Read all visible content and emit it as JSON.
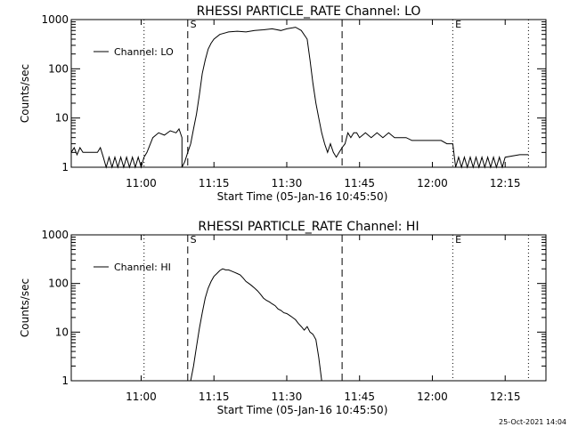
{
  "footer": {
    "timestamp": "25-Oct-2021 14:04"
  },
  "chart_data": [
    {
      "type": "line",
      "title": "RHESSI PARTICLE_RATE Channel: LO",
      "xlabel": "Start Time (05-Jan-16 10:45:50)",
      "ylabel": "Counts/sec",
      "y_scale": "log",
      "ylim": [
        1,
        1000
      ],
      "xlim": [
        10.76,
        12.39
      ],
      "x_ticks": [
        11.0,
        11.25,
        11.5,
        11.75,
        12.0,
        12.25
      ],
      "x_tick_labels": [
        "11:00",
        "11:15",
        "11:30",
        "11:45",
        "12:00",
        "12:15"
      ],
      "y_ticks": [
        1,
        10,
        100,
        1000
      ],
      "y_tick_labels": [
        "1",
        "10",
        "100",
        "1000"
      ],
      "grid": false,
      "legend_position": "top-left",
      "vlines_dotted": [
        11.01,
        12.07,
        12.33
      ],
      "vlines_dashed": [
        11.16,
        11.69
      ],
      "markers": [
        {
          "label": "S",
          "x": 11.17
        },
        {
          "label": "E",
          "x": 12.08
        }
      ],
      "series": [
        {
          "name": "Channel: LO",
          "x": [
            10.76,
            10.77,
            10.78,
            10.79,
            10.8,
            10.81,
            10.82,
            10.83,
            10.84,
            10.85,
            10.86,
            10.87,
            10.88,
            10.89,
            10.9,
            10.91,
            10.92,
            10.93,
            10.94,
            10.95,
            10.96,
            10.97,
            10.98,
            10.99,
            11.0,
            11.01,
            11.02,
            11.04,
            11.06,
            11.08,
            11.1,
            11.12,
            11.13,
            11.14,
            11.14,
            11.15,
            11.16,
            11.17,
            11.18,
            11.19,
            11.2,
            11.21,
            11.22,
            11.23,
            11.24,
            11.25,
            11.27,
            11.3,
            11.33,
            11.36,
            11.39,
            11.42,
            11.45,
            11.48,
            11.5,
            11.52,
            11.53,
            11.55,
            11.57,
            11.58,
            11.59,
            11.6,
            11.61,
            11.62,
            11.63,
            11.64,
            11.65,
            11.66,
            11.67,
            11.68,
            11.69,
            11.7,
            11.71,
            11.72,
            11.73,
            11.74,
            11.75,
            11.77,
            11.79,
            11.81,
            11.83,
            11.85,
            11.87,
            11.89,
            11.91,
            11.93,
            11.95,
            11.97,
            11.99,
            12.01,
            12.03,
            12.05,
            12.06,
            12.07,
            12.08,
            12.09,
            12.1,
            12.11,
            12.12,
            12.13,
            12.14,
            12.15,
            12.16,
            12.17,
            12.18,
            12.19,
            12.2,
            12.21,
            12.22,
            12.23,
            12.24,
            12.25,
            12.3,
            12.33
          ],
          "y": [
            2,
            2.5,
            1.8,
            2.5,
            2,
            2,
            2,
            2,
            2,
            2,
            2.5,
            1.6,
            1,
            1.6,
            1,
            1.6,
            1,
            1.6,
            1,
            1.6,
            1,
            1.6,
            1,
            1.6,
            1,
            1.6,
            2,
            4,
            5,
            4.5,
            5.5,
            5,
            6,
            4,
            1,
            1.3,
            2,
            3,
            6,
            12,
            30,
            80,
            150,
            250,
            330,
            400,
            500,
            560,
            580,
            560,
            600,
            620,
            650,
            600,
            650,
            680,
            700,
            600,
            400,
            150,
            50,
            20,
            10,
            5,
            3,
            2,
            3,
            2,
            1.6,
            2,
            2.5,
            3,
            5,
            4,
            5,
            5,
            4,
            5,
            4,
            5,
            4,
            5,
            4,
            4,
            4,
            3.5,
            3.5,
            3.5,
            3.5,
            3.5,
            3.5,
            3,
            3,
            3,
            1,
            1.6,
            1,
            1.6,
            1,
            1.6,
            1,
            1.6,
            1,
            1.6,
            1,
            1.6,
            1,
            1.6,
            1,
            1.6,
            1,
            1.6,
            1.8,
            1.8
          ]
        }
      ]
    },
    {
      "type": "line",
      "title": "RHESSI PARTICLE_RATE Channel: HI",
      "xlabel": "Start Time (05-Jan-16 10:45:50)",
      "ylabel": "Counts/sec",
      "y_scale": "log",
      "ylim": [
        1,
        1000
      ],
      "xlim": [
        10.76,
        12.39
      ],
      "x_ticks": [
        11.0,
        11.25,
        11.5,
        11.75,
        12.0,
        12.25
      ],
      "x_tick_labels": [
        "11:00",
        "11:15",
        "11:30",
        "11:45",
        "12:00",
        "12:15"
      ],
      "y_ticks": [
        1,
        10,
        100,
        1000
      ],
      "y_tick_labels": [
        "1",
        "10",
        "100",
        "1000"
      ],
      "grid": false,
      "legend_position": "top-left",
      "vlines_dotted": [
        11.01,
        12.07,
        12.33
      ],
      "vlines_dashed": [
        11.16,
        11.69
      ],
      "markers": [
        {
          "label": "S",
          "x": 11.17
        },
        {
          "label": "E",
          "x": 12.08
        }
      ],
      "series": [
        {
          "name": "Channel: HI",
          "x": [
            11.17,
            11.18,
            11.19,
            11.2,
            11.21,
            11.22,
            11.23,
            11.24,
            11.25,
            11.26,
            11.27,
            11.28,
            11.29,
            11.3,
            11.31,
            11.32,
            11.33,
            11.34,
            11.35,
            11.36,
            11.37,
            11.38,
            11.39,
            11.4,
            11.41,
            11.42,
            11.43,
            11.44,
            11.45,
            11.46,
            11.47,
            11.48,
            11.49,
            11.5,
            11.51,
            11.52,
            11.53,
            11.54,
            11.55,
            11.56,
            11.57,
            11.58,
            11.59,
            11.6,
            11.61,
            11.62
          ],
          "y": [
            1,
            2,
            5,
            12,
            25,
            50,
            80,
            110,
            140,
            160,
            185,
            200,
            190,
            190,
            180,
            170,
            160,
            150,
            130,
            110,
            100,
            90,
            80,
            70,
            60,
            50,
            45,
            42,
            38,
            35,
            30,
            28,
            25,
            24,
            22,
            20,
            18,
            15,
            13,
            11,
            13,
            10,
            9,
            7,
            3,
            1
          ]
        }
      ]
    }
  ]
}
